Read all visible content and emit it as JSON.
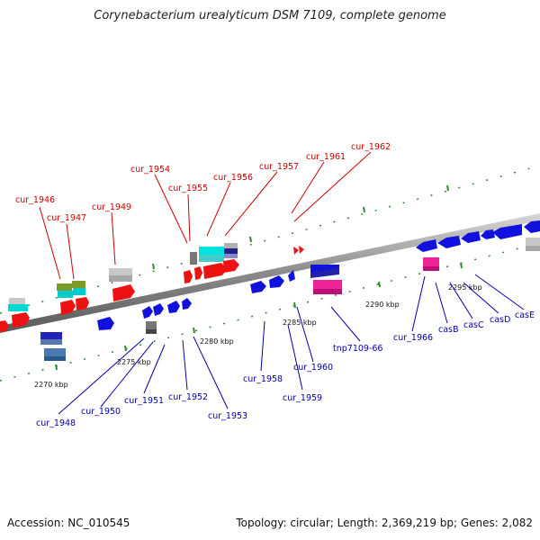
{
  "title": "Corynebacterium urealyticum DSM 7109, complete genome",
  "accession": "Accession: NC_010545",
  "summary": "Topology: circular; Length: 2,369,219 bp; Genes: 2,082",
  "colors": {
    "forward_label": "#cc0000",
    "reverse_label": "#0000aa",
    "backbone": "#888888",
    "ticks": "#2e8b2e"
  },
  "kbp_labels": [
    "2270 kbp",
    "2275 kbp",
    "2280 kbp",
    "2285 kbp",
    "2290 kbp",
    "2295 kbp"
  ],
  "forward_labels": [
    "cur_1946",
    "cur_1947",
    "cur_1949",
    "cur_1954",
    "cur_1955",
    "cur_1956",
    "cur_1957",
    "cur_1961",
    "cur_1962"
  ],
  "reverse_labels": [
    "cur_1948",
    "cur_1950",
    "cur_1951",
    "cur_1952",
    "cur_1953",
    "cur_1958",
    "cur_1959",
    "cur_1960",
    "tnp7109-66",
    "cur_1966",
    "casB",
    "casC",
    "casD",
    "casE"
  ]
}
